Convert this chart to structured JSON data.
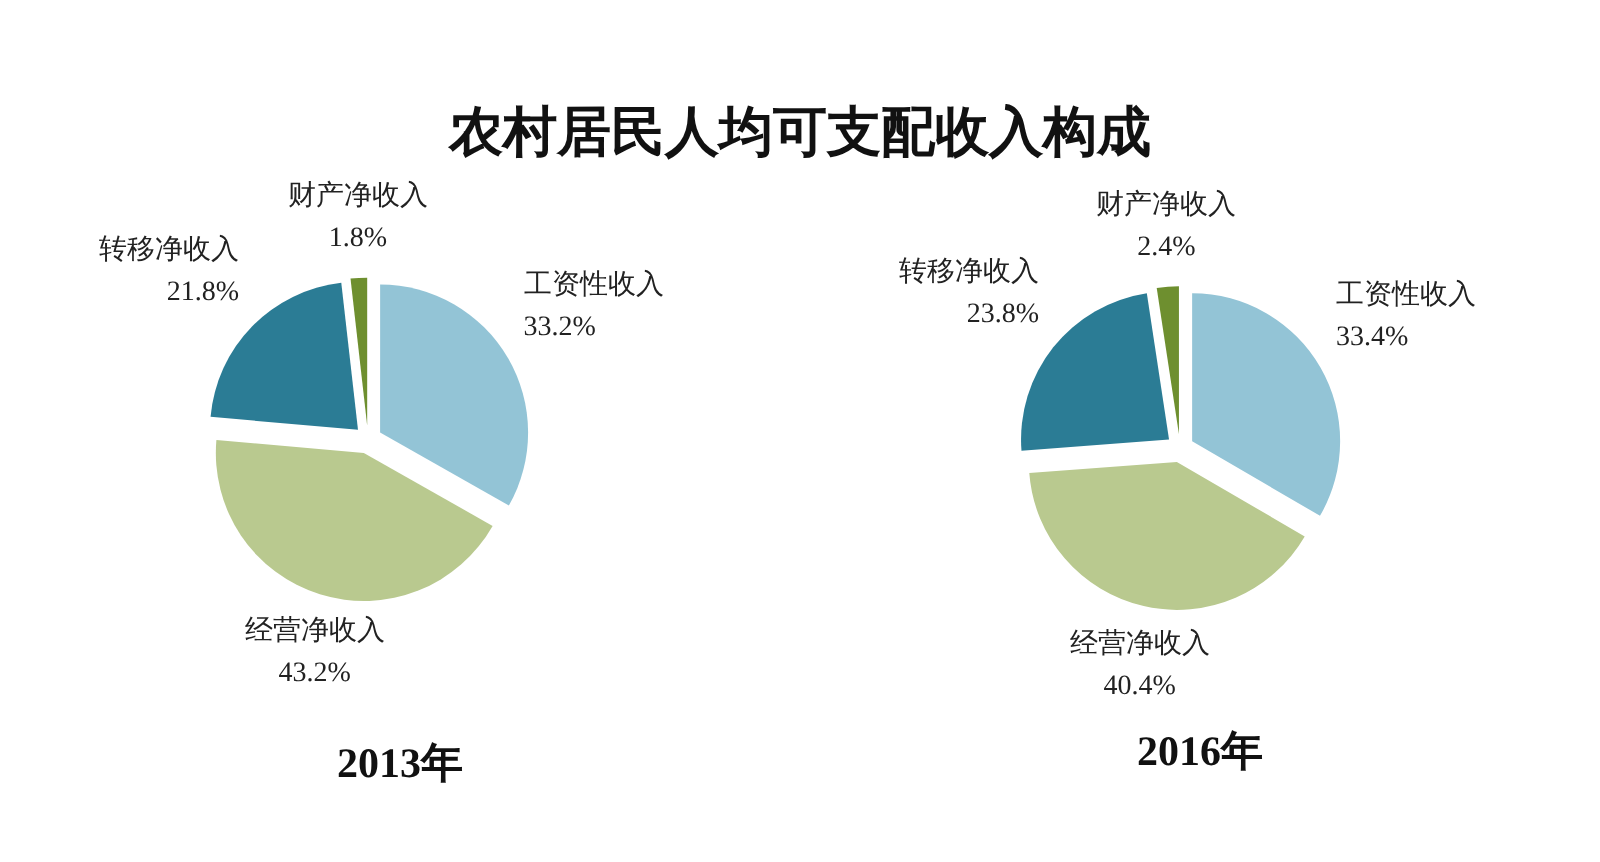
{
  "chart_data": [
    {
      "type": "pie",
      "title": "农村居民人均可支配收入构成",
      "subtitle": "2013年",
      "categories": [
        "工资性收入",
        "经营净收入",
        "转移净收入",
        "财产净收入"
      ],
      "values": [
        33.2,
        43.2,
        21.8,
        1.8
      ],
      "value_labels": [
        "33.2%",
        "43.2%",
        "21.8%",
        "1.8%"
      ],
      "colors": [
        "#93c4d6",
        "#b9c98f",
        "#2b7c95",
        "#6e8f2f"
      ]
    },
    {
      "type": "pie",
      "subtitle": "2016年",
      "categories": [
        "工资性收入",
        "经营净收入",
        "转移净收入",
        "财产净收入"
      ],
      "values": [
        33.4,
        40.4,
        23.8,
        2.4
      ],
      "value_labels": [
        "33.4%",
        "40.4%",
        "23.8%",
        "2.4%"
      ],
      "colors": [
        "#93c4d6",
        "#b9c98f",
        "#2b7c95",
        "#6e8f2f"
      ]
    }
  ]
}
